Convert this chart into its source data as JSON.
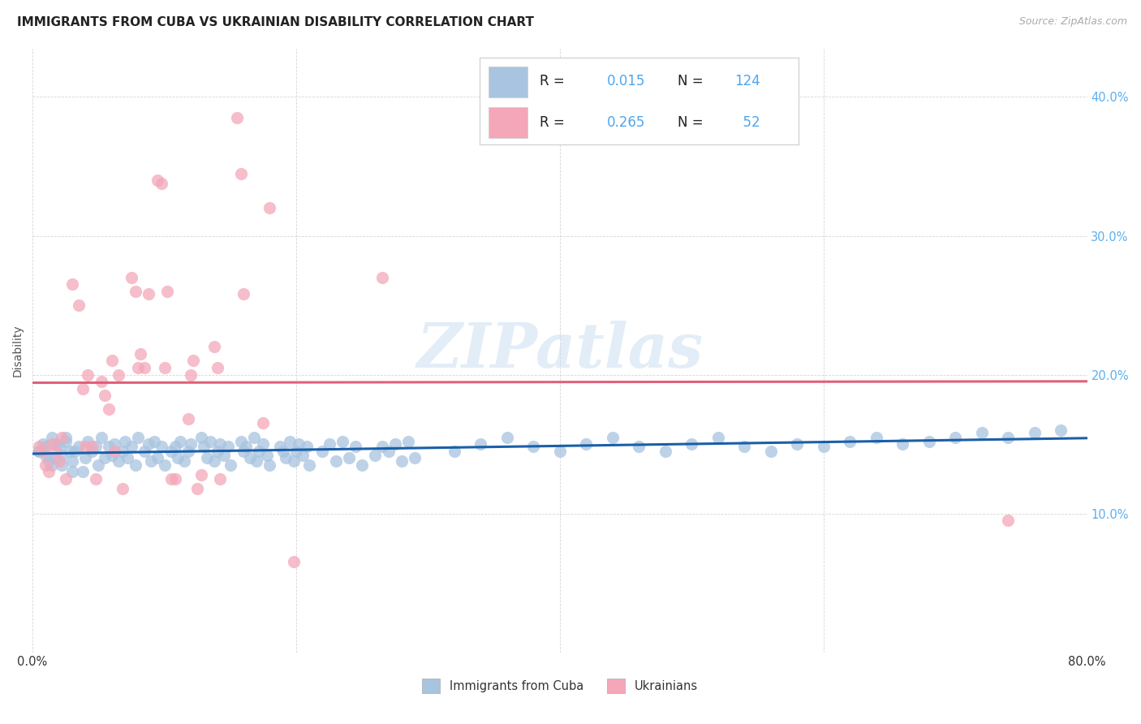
{
  "title": "IMMIGRANTS FROM CUBA VS UKRAINIAN DISABILITY CORRELATION CHART",
  "source": "Source: ZipAtlas.com",
  "ylabel": "Disability",
  "xlim": [
    0.0,
    0.8
  ],
  "ylim": [
    0.0,
    0.435
  ],
  "yticks": [
    0.1,
    0.2,
    0.3,
    0.4
  ],
  "ytick_labels": [
    "10.0%",
    "20.0%",
    "30.0%",
    "40.0%"
  ],
  "xticks": [
    0.0,
    0.2,
    0.4,
    0.6,
    0.8
  ],
  "xtick_labels": [
    "0.0%",
    "",
    "",
    "",
    "80.0%"
  ],
  "legend_labels": [
    "Immigrants from Cuba",
    "Ukrainians"
  ],
  "cuba_color": "#a8c4e0",
  "ukraine_color": "#f4a7b9",
  "cuba_line_color": "#1a5fa8",
  "ukraine_line_color": "#e0607a",
  "legend_R_color": "#4da6f0",
  "legend_N_color": "#e05080",
  "cuba_R": 0.015,
  "cuba_N": 124,
  "ukraine_R": 0.265,
  "ukraine_N": 52,
  "watermark": "ZIPatlas",
  "background_color": "#ffffff",
  "grid_color": "#cccccc",
  "cuba_x": [
    0.005,
    0.008,
    0.01,
    0.012,
    0.015,
    0.018,
    0.02,
    0.022,
    0.025,
    0.028,
    0.03,
    0.005,
    0.01,
    0.015,
    0.018,
    0.022,
    0.025,
    0.03,
    0.032,
    0.035,
    0.038,
    0.04,
    0.042,
    0.045,
    0.048,
    0.05,
    0.052,
    0.055,
    0.058,
    0.06,
    0.062,
    0.065,
    0.068,
    0.07,
    0.072,
    0.075,
    0.078,
    0.08,
    0.085,
    0.088,
    0.09,
    0.092,
    0.095,
    0.098,
    0.1,
    0.105,
    0.108,
    0.11,
    0.112,
    0.115,
    0.118,
    0.12,
    0.128,
    0.13,
    0.132,
    0.135,
    0.138,
    0.14,
    0.142,
    0.145,
    0.148,
    0.15,
    0.158,
    0.16,
    0.162,
    0.165,
    0.168,
    0.17,
    0.172,
    0.175,
    0.178,
    0.18,
    0.188,
    0.19,
    0.192,
    0.195,
    0.198,
    0.2,
    0.202,
    0.205,
    0.208,
    0.21,
    0.22,
    0.225,
    0.23,
    0.235,
    0.24,
    0.245,
    0.25,
    0.26,
    0.265,
    0.27,
    0.275,
    0.28,
    0.285,
    0.29,
    0.32,
    0.34,
    0.36,
    0.38,
    0.4,
    0.42,
    0.44,
    0.46,
    0.48,
    0.5,
    0.52,
    0.54,
    0.56,
    0.58,
    0.6,
    0.62,
    0.64,
    0.66,
    0.68,
    0.7,
    0.72,
    0.74,
    0.76,
    0.78
  ],
  "cuba_y": [
    0.145,
    0.15,
    0.142,
    0.138,
    0.155,
    0.14,
    0.148,
    0.135,
    0.152,
    0.145,
    0.13,
    0.145,
    0.148,
    0.135,
    0.15,
    0.142,
    0.155,
    0.138,
    0.145,
    0.148,
    0.13,
    0.14,
    0.152,
    0.145,
    0.148,
    0.135,
    0.155,
    0.14,
    0.148,
    0.142,
    0.15,
    0.138,
    0.145,
    0.152,
    0.14,
    0.148,
    0.135,
    0.155,
    0.145,
    0.15,
    0.138,
    0.152,
    0.14,
    0.148,
    0.135,
    0.145,
    0.148,
    0.14,
    0.152,
    0.138,
    0.145,
    0.15,
    0.155,
    0.148,
    0.14,
    0.152,
    0.138,
    0.145,
    0.15,
    0.142,
    0.148,
    0.135,
    0.152,
    0.145,
    0.148,
    0.14,
    0.155,
    0.138,
    0.145,
    0.15,
    0.142,
    0.135,
    0.148,
    0.145,
    0.14,
    0.152,
    0.138,
    0.145,
    0.15,
    0.142,
    0.148,
    0.135,
    0.145,
    0.15,
    0.138,
    0.152,
    0.14,
    0.148,
    0.135,
    0.142,
    0.148,
    0.145,
    0.15,
    0.138,
    0.152,
    0.14,
    0.145,
    0.15,
    0.155,
    0.148,
    0.145,
    0.15,
    0.155,
    0.148,
    0.145,
    0.15,
    0.155,
    0.148,
    0.145,
    0.15,
    0.148,
    0.152,
    0.155,
    0.15,
    0.152,
    0.155,
    0.158,
    0.155,
    0.158,
    0.16
  ],
  "ukr_x": [
    0.005,
    0.008,
    0.01,
    0.012,
    0.015,
    0.018,
    0.02,
    0.022,
    0.025,
    0.03,
    0.035,
    0.038,
    0.04,
    0.042,
    0.045,
    0.048,
    0.052,
    0.055,
    0.058,
    0.06,
    0.062,
    0.065,
    0.068,
    0.075,
    0.078,
    0.08,
    0.082,
    0.085,
    0.088,
    0.095,
    0.098,
    0.1,
    0.102,
    0.105,
    0.108,
    0.118,
    0.12,
    0.122,
    0.125,
    0.128,
    0.138,
    0.14,
    0.142,
    0.155,
    0.158,
    0.16,
    0.175,
    0.18,
    0.198,
    0.265,
    0.74
  ],
  "ukr_y": [
    0.148,
    0.145,
    0.135,
    0.13,
    0.15,
    0.145,
    0.138,
    0.155,
    0.125,
    0.265,
    0.25,
    0.19,
    0.148,
    0.2,
    0.148,
    0.125,
    0.195,
    0.185,
    0.175,
    0.21,
    0.145,
    0.2,
    0.118,
    0.27,
    0.26,
    0.205,
    0.215,
    0.205,
    0.258,
    0.34,
    0.338,
    0.205,
    0.26,
    0.125,
    0.125,
    0.168,
    0.2,
    0.21,
    0.118,
    0.128,
    0.22,
    0.205,
    0.125,
    0.385,
    0.345,
    0.258,
    0.165,
    0.32,
    0.065,
    0.27,
    0.095
  ]
}
